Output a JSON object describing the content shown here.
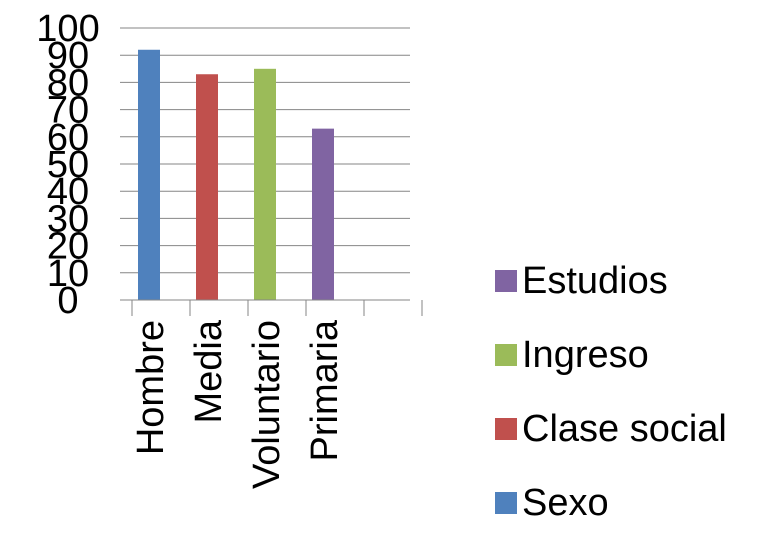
{
  "chart_data": {
    "type": "bar",
    "categories": [
      "Hombre",
      "Media",
      "Voluntario",
      "Primaria",
      ""
    ],
    "series": [
      {
        "name": "Sexo",
        "color": "#4f81bd",
        "values": [
          92,
          null,
          null,
          null,
          null
        ]
      },
      {
        "name": "Clase social",
        "color": "#c0504d",
        "values": [
          null,
          83,
          null,
          null,
          null
        ]
      },
      {
        "name": "Ingreso",
        "color": "#9bbb59",
        "values": [
          null,
          null,
          85,
          null,
          null
        ]
      },
      {
        "name": "Estudios",
        "color": "#8064a2",
        "values": [
          null,
          null,
          null,
          63,
          null
        ]
      }
    ],
    "ylim": [
      0,
      100
    ],
    "yticks": [
      "0",
      "10",
      "20",
      "30",
      "40",
      "50",
      "60",
      "70",
      "80",
      "90",
      "100"
    ],
    "grid": true,
    "legend_position": "right",
    "legend_order": [
      "Estudios",
      "Ingreso",
      "Clase social",
      "Sexo"
    ],
    "title": "",
    "xlabel": "",
    "ylabel": ""
  },
  "colors": {
    "gridline": "#868686",
    "axis": "#868686"
  }
}
